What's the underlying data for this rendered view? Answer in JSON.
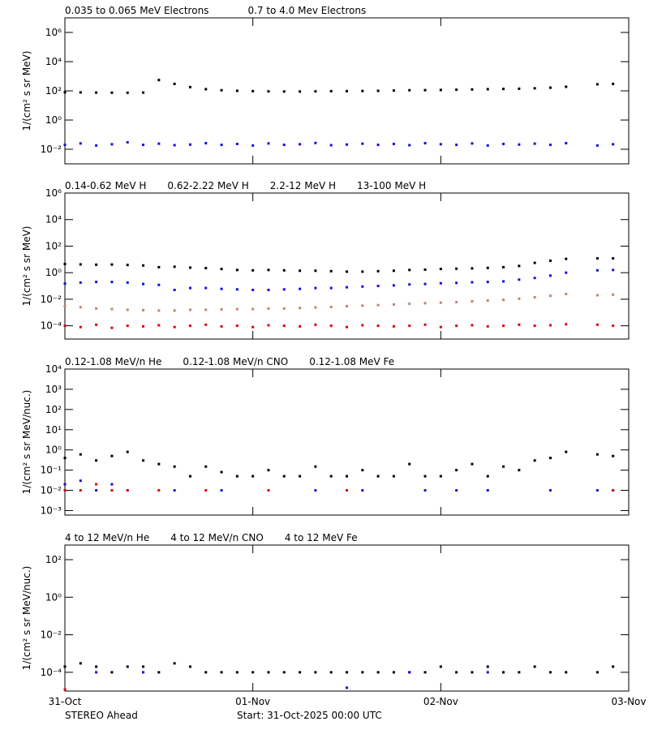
{
  "chart_data": [
    {
      "type": "scatter",
      "ylabel": "1/(cm² s sr MeV)",
      "log_y": true,
      "x": [
        0,
        2,
        4,
        6,
        8,
        10,
        12,
        14,
        16,
        18,
        20,
        22,
        24,
        26,
        28,
        30,
        32,
        34,
        36,
        38,
        40,
        42,
        44,
        46,
        48,
        50,
        52,
        54,
        56,
        58,
        60,
        62,
        64,
        66,
        68,
        70
      ],
      "xlim": [
        0,
        72
      ],
      "xticks": [
        0,
        24,
        48,
        72
      ],
      "ylim": [
        0.001,
        10000000
      ],
      "yticks": [
        {
          "value": 0.01,
          "label": "10⁻²"
        },
        {
          "value": 1,
          "label": "10⁰"
        },
        {
          "value": 100,
          "label": "10²"
        },
        {
          "value": 10000,
          "label": "10⁴"
        },
        {
          "value": 1000000,
          "label": "10⁶"
        }
      ],
      "series": [
        {
          "name": "0.035 to 0.065 MeV Electrons",
          "color": "#000000",
          "values": [
            80,
            78,
            76,
            75,
            74,
            76,
            550,
            300,
            180,
            130,
            110,
            100,
            95,
            92,
            90,
            90,
            92,
            95,
            95,
            98,
            100,
            105,
            110,
            112,
            115,
            120,
            125,
            130,
            135,
            140,
            150,
            165,
            190,
            null,
            280,
            300
          ]
        },
        {
          "name": "0.7 to 4.0 Mev Electrons",
          "color": "#1010e0",
          "values": [
            0.02,
            0.025,
            0.018,
            0.022,
            0.03,
            0.02,
            0.024,
            0.019,
            0.021,
            0.026,
            0.02,
            0.023,
            0.018,
            0.025,
            0.02,
            0.022,
            0.027,
            0.019,
            0.021,
            0.024,
            0.02,
            0.023,
            0.019,
            0.026,
            0.022,
            0.02,
            0.025,
            0.018,
            0.023,
            0.021,
            0.024,
            0.02,
            0.026,
            null,
            0.018,
            0.022
          ]
        }
      ]
    },
    {
      "type": "scatter",
      "ylabel": "1/(cm² s sr MeV)",
      "log_y": true,
      "x": [
        0,
        2,
        4,
        6,
        8,
        10,
        12,
        14,
        16,
        18,
        20,
        22,
        24,
        26,
        28,
        30,
        32,
        34,
        36,
        38,
        40,
        42,
        44,
        46,
        48,
        50,
        52,
        54,
        56,
        58,
        60,
        62,
        64,
        66,
        68,
        70
      ],
      "xlim": [
        0,
        72
      ],
      "xticks": [
        0,
        24,
        48,
        72
      ],
      "ylim": [
        1e-05,
        1000000
      ],
      "yticks": [
        {
          "value": 0.0001,
          "label": "10⁻⁴"
        },
        {
          "value": 0.01,
          "label": "10⁻²"
        },
        {
          "value": 1,
          "label": "10⁰"
        },
        {
          "value": 100,
          "label": "10²"
        },
        {
          "value": 10000,
          "label": "10⁴"
        },
        {
          "value": 1000000,
          "label": "10⁶"
        }
      ],
      "series": [
        {
          "name": "0.14-0.62 MeV H",
          "color": "#000000",
          "values": [
            4.5,
            4.2,
            4.0,
            4.1,
            3.8,
            3.5,
            2.6,
            2.8,
            2.4,
            2.2,
            1.9,
            1.6,
            1.5,
            1.6,
            1.5,
            1.4,
            1.4,
            1.3,
            1.2,
            1.2,
            1.3,
            1.4,
            1.6,
            1.7,
            1.9,
            2.0,
            2.1,
            2.3,
            2.6,
            3.2,
            5.5,
            8.0,
            11,
            null,
            12,
            12
          ]
        },
        {
          "name": "0.62-2.22 MeV H",
          "color": "#1010e0",
          "values": [
            0.15,
            0.18,
            0.2,
            0.2,
            0.18,
            0.14,
            0.12,
            0.05,
            0.07,
            0.07,
            0.06,
            0.055,
            0.05,
            0.05,
            0.055,
            0.06,
            0.07,
            0.07,
            0.08,
            0.09,
            0.1,
            0.11,
            0.13,
            0.14,
            0.16,
            0.17,
            0.19,
            0.2,
            0.22,
            0.3,
            0.4,
            0.6,
            1.0,
            null,
            1.5,
            1.6
          ]
        },
        {
          "name": "2.2-12 MeV H",
          "color": "#c48070",
          "values": [
            0.003,
            0.0025,
            0.002,
            0.0018,
            0.0016,
            0.0015,
            0.0014,
            0.0014,
            0.0016,
            0.0016,
            0.0017,
            0.0018,
            0.0018,
            0.002,
            0.002,
            0.0022,
            0.0024,
            0.0026,
            0.003,
            0.0033,
            0.0036,
            0.004,
            0.0045,
            0.005,
            0.0055,
            0.006,
            0.007,
            0.008,
            0.009,
            0.011,
            0.014,
            0.018,
            0.025,
            null,
            0.02,
            0.022
          ]
        },
        {
          "name": "13-100 MeV H",
          "color": "#e00000",
          "values": [
            0.0001,
            8e-05,
            0.00012,
            7e-05,
            0.0001,
            9e-05,
            0.00011,
            8e-05,
            0.0001,
            0.00012,
            9e-05,
            0.0001,
            8e-05,
            0.00011,
            0.0001,
            9e-05,
            0.00012,
            0.0001,
            8e-05,
            0.00011,
            0.0001,
            9e-05,
            0.0001,
            0.00012,
            8e-05,
            0.0001,
            0.00011,
            9e-05,
            0.0001,
            0.00012,
            0.0001,
            0.00011,
            0.00013,
            null,
            0.00012,
            0.0001
          ]
        }
      ]
    },
    {
      "type": "scatter",
      "ylabel": "1/(cm² s sr MeV/nuc.)",
      "log_y": true,
      "x": [
        0,
        2,
        4,
        6,
        8,
        10,
        12,
        14,
        16,
        18,
        20,
        22,
        24,
        26,
        28,
        30,
        32,
        34,
        36,
        38,
        40,
        42,
        44,
        46,
        48,
        50,
        52,
        54,
        56,
        58,
        60,
        62,
        64,
        66,
        68,
        70
      ],
      "xlim": [
        0,
        72
      ],
      "xticks": [
        0,
        24,
        48,
        72
      ],
      "ylim": [
        0.0006,
        10000
      ],
      "yticks": [
        {
          "value": 0.001,
          "label": "10⁻³"
        },
        {
          "value": 0.01,
          "label": "10⁻²"
        },
        {
          "value": 0.1,
          "label": "10⁻¹"
        },
        {
          "value": 1,
          "label": "10⁰"
        },
        {
          "value": 10,
          "label": "10¹"
        },
        {
          "value": 100,
          "label": "10²"
        },
        {
          "value": 1000,
          "label": "10³"
        },
        {
          "value": 10000,
          "label": "10⁴"
        }
      ],
      "series": [
        {
          "name": "0.12-1.08 MeV/n He",
          "color": "#000000",
          "values": [
            0.4,
            0.6,
            0.3,
            0.5,
            0.8,
            0.3,
            0.2,
            0.15,
            0.05,
            0.15,
            0.08,
            0.05,
            0.05,
            0.1,
            0.05,
            0.05,
            0.15,
            0.05,
            0.05,
            0.1,
            0.05,
            0.05,
            0.2,
            0.05,
            0.05,
            0.1,
            0.2,
            0.05,
            0.15,
            0.1,
            0.3,
            0.4,
            0.8,
            null,
            0.6,
            0.5
          ]
        },
        {
          "name": "0.12-1.08 MeV/n CNO",
          "color": "#1010e0",
          "values": [
            0.02,
            0.03,
            0.01,
            0.02,
            0.01,
            null,
            null,
            0.01,
            null,
            null,
            0.01,
            null,
            null,
            null,
            null,
            null,
            0.01,
            null,
            null,
            0.01,
            null,
            null,
            null,
            0.01,
            null,
            0.01,
            null,
            0.01,
            null,
            null,
            null,
            0.01,
            null,
            null,
            0.01,
            0.01
          ]
        },
        {
          "name": "0.12-1.08 MeV Fe",
          "color": "#e00000",
          "values": [
            0.01,
            0.01,
            0.02,
            0.01,
            0.01,
            null,
            0.01,
            null,
            null,
            0.01,
            null,
            null,
            null,
            0.01,
            null,
            null,
            null,
            null,
            0.01,
            null,
            null,
            null,
            null,
            null,
            null,
            null,
            null,
            null,
            null,
            null,
            null,
            null,
            null,
            null,
            null,
            0.01
          ]
        }
      ]
    },
    {
      "type": "scatter",
      "ylabel": "1/(cm² s sr MeV/nuc.)",
      "log_y": true,
      "x": [
        0,
        2,
        4,
        6,
        8,
        10,
        12,
        14,
        16,
        18,
        20,
        22,
        24,
        26,
        28,
        30,
        32,
        34,
        36,
        38,
        40,
        42,
        44,
        46,
        48,
        50,
        52,
        54,
        56,
        58,
        60,
        62,
        64,
        66,
        68,
        70
      ],
      "xlim": [
        0,
        72
      ],
      "xticks": [
        {
          "value": 0,
          "label": "31-Oct"
        },
        {
          "value": 24,
          "label": "01-Nov"
        },
        {
          "value": 48,
          "label": "02-Nov"
        },
        {
          "value": 72,
          "label": "03-Nov"
        }
      ],
      "ylim": [
        1e-05,
        600
      ],
      "yticks": [
        {
          "value": 0.0001,
          "label": "10⁻⁴"
        },
        {
          "value": 0.01,
          "label": "10⁻²"
        },
        {
          "value": 1,
          "label": "10⁰"
        },
        {
          "value": 100,
          "label": "10²"
        }
      ],
      "series": [
        {
          "name": "4 to 12 MeV/n He",
          "color": "#000000",
          "values": [
            0.0002,
            0.0003,
            0.0002,
            0.0001,
            0.0002,
            0.0002,
            0.0001,
            0.0003,
            0.0002,
            0.0001,
            0.0001,
            0.0001,
            0.0001,
            0.0001,
            0.0001,
            0.0001,
            0.0001,
            0.0001,
            0.0001,
            0.0001,
            0.0001,
            0.0001,
            0.0001,
            0.0001,
            0.0002,
            0.0001,
            0.0001,
            0.0002,
            0.0001,
            0.0001,
            0.0002,
            0.0001,
            0.0001,
            null,
            0.0001,
            0.0002
          ]
        },
        {
          "name": "4 to 12 MeV/n CNO",
          "color": "#1010e0",
          "values": [
            null,
            null,
            0.0001,
            null,
            null,
            0.0001,
            null,
            null,
            null,
            null,
            null,
            null,
            null,
            null,
            null,
            null,
            null,
            null,
            1.5e-05,
            null,
            null,
            null,
            0.0001,
            null,
            null,
            null,
            null,
            0.0001,
            null,
            null,
            null,
            null,
            null,
            null,
            null,
            null
          ]
        },
        {
          "name": "4 to 12 MeV Fe",
          "color": "#e00000",
          "values": [
            1.2e-05,
            null,
            null,
            null,
            null,
            null,
            null,
            null,
            null,
            null,
            null,
            null,
            null,
            null,
            null,
            null,
            null,
            null,
            null,
            null,
            null,
            null,
            null,
            null,
            null,
            null,
            null,
            null,
            null,
            null,
            null,
            null,
            null,
            null,
            null,
            null
          ]
        }
      ]
    }
  ],
  "footer": {
    "left": "STEREO Ahead",
    "center": "Start: 31-Oct-2025 00:00 UTC"
  }
}
